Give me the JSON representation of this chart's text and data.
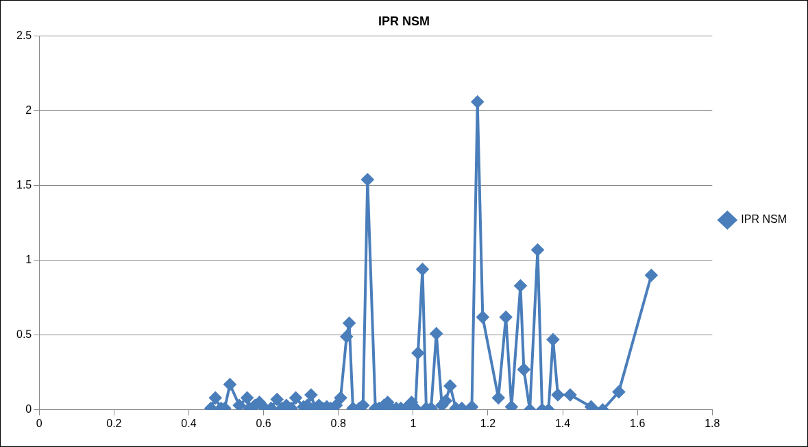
{
  "chart_data": {
    "type": "line",
    "title": "IPR NSM",
    "legend": "right",
    "marker": "diamond",
    "grid": "y",
    "xlim": [
      0,
      1.8
    ],
    "xticks": [
      0,
      0.2,
      0.4,
      0.6,
      0.8,
      1,
      1.2,
      1.4,
      1.6,
      1.8
    ],
    "ylim": [
      0,
      2.5
    ],
    "yticks": [
      0,
      0.5,
      1,
      1.5,
      2,
      2.5
    ],
    "series": [
      {
        "name": "IPR NSM",
        "color": "#4a7ebb",
        "x": [
          0.459,
          0.471,
          0.486,
          0.496,
          0.51,
          0.535,
          0.556,
          0.562,
          0.577,
          0.589,
          0.603,
          0.62,
          0.636,
          0.649,
          0.661,
          0.674,
          0.686,
          0.707,
          0.717,
          0.727,
          0.738,
          0.748,
          0.758,
          0.769,
          0.779,
          0.794,
          0.806,
          0.822,
          0.829,
          0.839,
          0.856,
          0.866,
          0.878,
          0.899,
          0.909,
          0.922,
          0.932,
          0.942,
          0.955,
          0.967,
          0.98,
          0.99,
          0.996,
          1.006,
          1.013,
          1.025,
          1.035,
          1.048,
          1.062,
          1.077,
          1.087,
          1.099,
          1.114,
          1.13,
          1.157,
          1.172,
          1.186,
          1.228,
          1.248,
          1.263,
          1.287,
          1.296,
          1.312,
          1.333,
          1.345,
          1.362,
          1.374,
          1.387,
          1.42,
          1.476,
          1.507,
          1.55,
          1.637
        ],
        "values": [
          0.01,
          0.08,
          0.01,
          0.01,
          0.17,
          0.03,
          0.08,
          0.01,
          0.03,
          0.05,
          0.01,
          0.01,
          0.07,
          0.01,
          0.03,
          0.01,
          0.08,
          0.02,
          0.03,
          0.1,
          0.01,
          0.03,
          0.01,
          0.02,
          0.01,
          0.03,
          0.08,
          0.49,
          0.58,
          0.01,
          0.01,
          0.03,
          1.54,
          0.01,
          0.01,
          0.03,
          0.05,
          0.01,
          0.01,
          0.01,
          0.01,
          0.03,
          0.05,
          0.01,
          0.38,
          0.94,
          0.01,
          0.01,
          0.51,
          0.03,
          0.06,
          0.16,
          0.01,
          0.01,
          0.02,
          2.06,
          0.62,
          0.08,
          0.62,
          0.02,
          0.83,
          0.27,
          0,
          1.07,
          0,
          0,
          0.47,
          0.1,
          0.1,
          0.02,
          0,
          0.12,
          0.9
        ]
      }
    ]
  }
}
